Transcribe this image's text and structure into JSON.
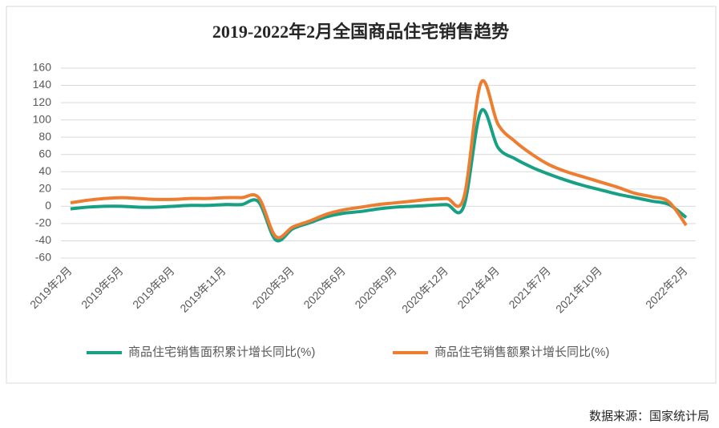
{
  "chart_data": {
    "type": "line",
    "title": "2019-2022年2月全国商品住宅销售趋势",
    "categories": [
      "2019年2月",
      null,
      null,
      "2019年5月",
      null,
      null,
      "2019年8月",
      null,
      null,
      "2019年11月",
      null,
      null,
      null,
      "2020年3月",
      null,
      null,
      "2020年6月",
      null,
      null,
      "2020年9月",
      null,
      null,
      "2020年12月",
      null,
      null,
      "2021年4月",
      null,
      null,
      "2021年7月",
      null,
      null,
      "2021年10月",
      null,
      null,
      null,
      null,
      "2022年2月"
    ],
    "series": [
      {
        "name": "商品住宅销售面积累计增长同比(%)",
        "color": "#17a084",
        "values": [
          -3,
          -1,
          0,
          0,
          -1,
          -1,
          0,
          1,
          1,
          2,
          2,
          5,
          -39,
          -26,
          -19,
          -12,
          -8,
          -6,
          -3,
          -1,
          0,
          1,
          2,
          0,
          110,
          68,
          55,
          45,
          37,
          30,
          24,
          19,
          14,
          10,
          6,
          2,
          -13
        ]
      },
      {
        "name": "商品住宅销售额累计增长同比(%)",
        "color": "#ed7d31",
        "values": [
          4,
          7,
          9,
          10,
          9,
          8,
          8,
          9,
          9,
          10,
          10,
          10,
          -35,
          -24,
          -17,
          -9,
          -4,
          -1,
          2,
          4,
          6,
          8,
          9,
          10,
          143,
          95,
          75,
          60,
          48,
          40,
          34,
          28,
          22,
          15,
          11,
          5,
          -22
        ]
      }
    ],
    "ylim": [
      -60,
      160
    ],
    "yticks": [
      -60,
      -40,
      -20,
      0,
      20,
      40,
      60,
      80,
      100,
      120,
      140,
      160
    ],
    "grid": true,
    "source": "数据来源：国家统计局"
  }
}
